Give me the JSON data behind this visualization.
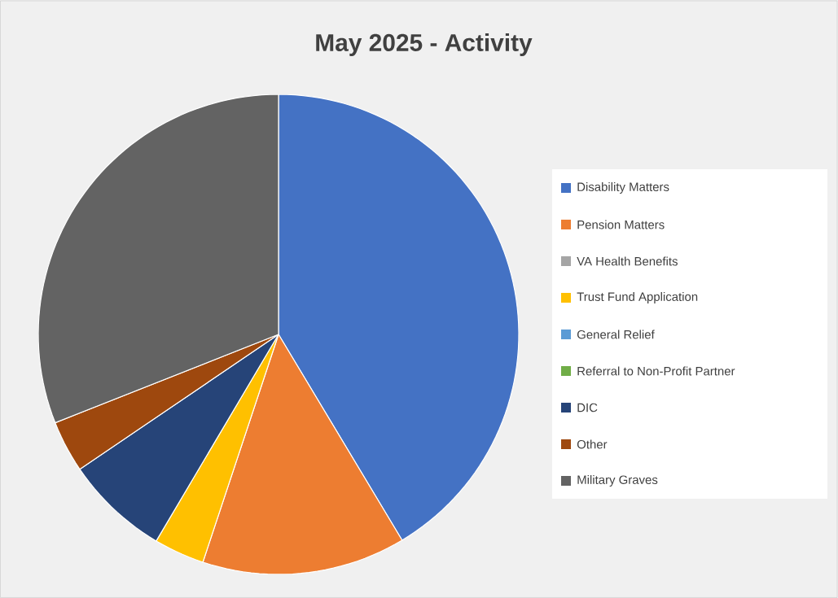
{
  "chart_data": {
    "type": "pie",
    "title": "May 2025 - Activity",
    "categories": [
      "Disability Matters",
      "Pension Matters",
      "VA Health Benefits",
      "Trust Fund Application",
      "General Relief",
      "Referral to Non-Profit Partner",
      "DIC",
      "Other",
      "Military Graves"
    ],
    "values": [
      41.4,
      13.7,
      0,
      3.4,
      0,
      0,
      7.0,
      3.5,
      31.0
    ],
    "colors": [
      "#4472c4",
      "#ed7d31",
      "#a5a5a5",
      "#ffc000",
      "#5b9bd5",
      "#70ad47",
      "#264478",
      "#9e480e",
      "#636363"
    ],
    "legend": "right"
  }
}
